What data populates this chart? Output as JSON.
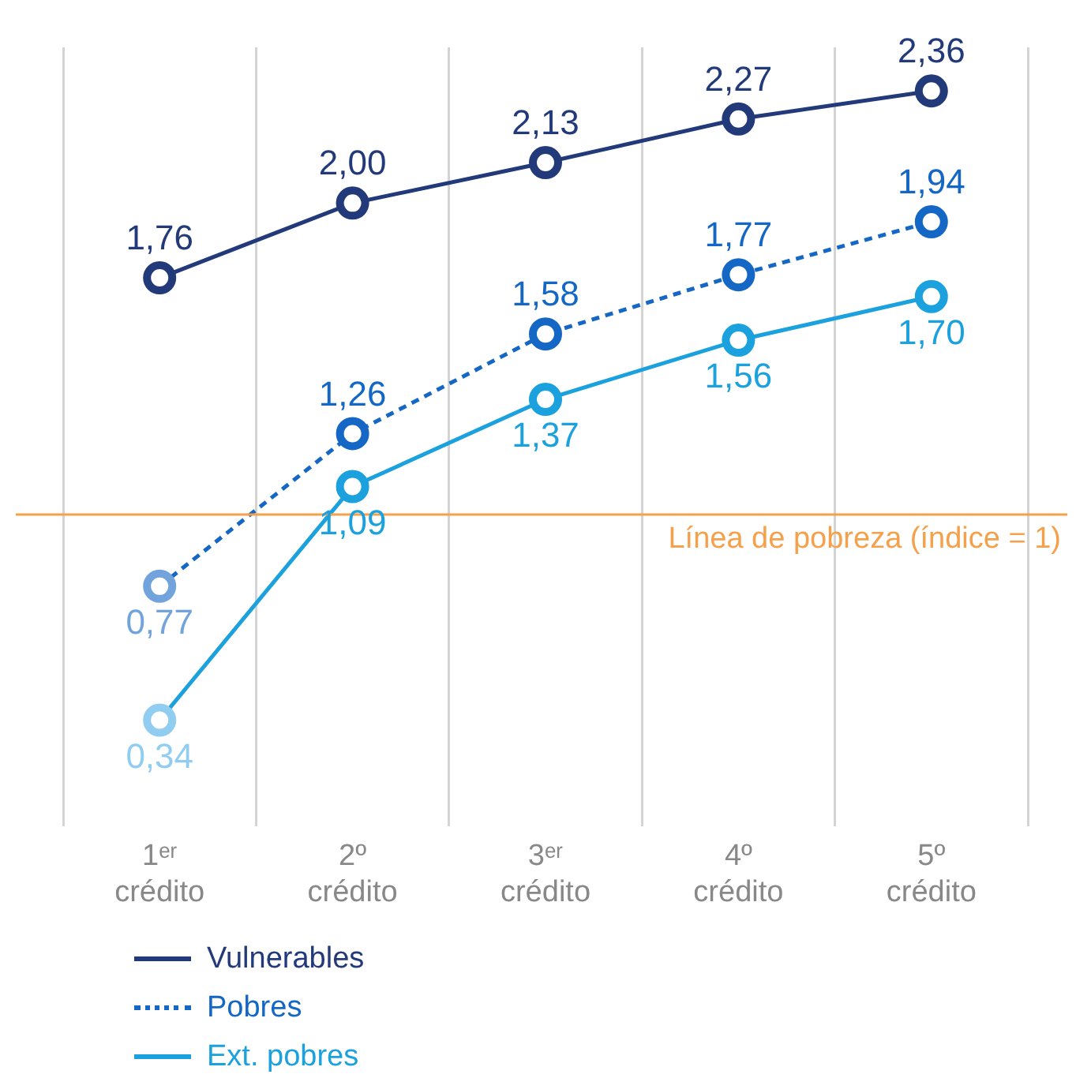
{
  "chart_data": {
    "type": "line",
    "categories": [
      "1ᵉʳ\ncrédito",
      "2º\ncrédito",
      "3ᵉʳ\ncrédito",
      "4º\ncrédito",
      "5º\ncrédito"
    ],
    "series": [
      {
        "name": "Vulnerables",
        "color": "#233a7a",
        "values": [
          1.76,
          2.0,
          2.13,
          2.27,
          2.36
        ],
        "value_labels": [
          "1,76",
          "2,00",
          "2,13",
          "2,27",
          "2,36"
        ],
        "line_style": "solid"
      },
      {
        "name": "Pobres",
        "color": "#1467c4",
        "colors": [
          "#72a3dc",
          "#1467c4",
          "#1467c4",
          "#1467c4",
          "#1467c4"
        ],
        "values": [
          0.77,
          1.26,
          1.58,
          1.77,
          1.94
        ],
        "value_labels": [
          "0,77",
          "1,26",
          "1,58",
          "1,77",
          "1,94"
        ],
        "line_style": "dotted"
      },
      {
        "name": "Ext. pobres",
        "color": "#1ba1dd",
        "colors": [
          "#91cdf0",
          "#1ba1dd",
          "#1ba1dd",
          "#1ba1dd",
          "#1ba1dd"
        ],
        "values": [
          0.34,
          1.09,
          1.37,
          1.56,
          1.7
        ],
        "value_labels": [
          "0,34",
          "1,09",
          "1,37",
          "1,56",
          "1,70"
        ],
        "line_style": "solid"
      }
    ],
    "tick_labels": "x",
    "grid": "x",
    "marker": "circle",
    "legend": "bottom left",
    "ref_lines": [
      {
        "axis": "y",
        "value": 1,
        "label": "Línea de pobreza (índice = 1)",
        "color": "#f5a04a"
      }
    ]
  }
}
